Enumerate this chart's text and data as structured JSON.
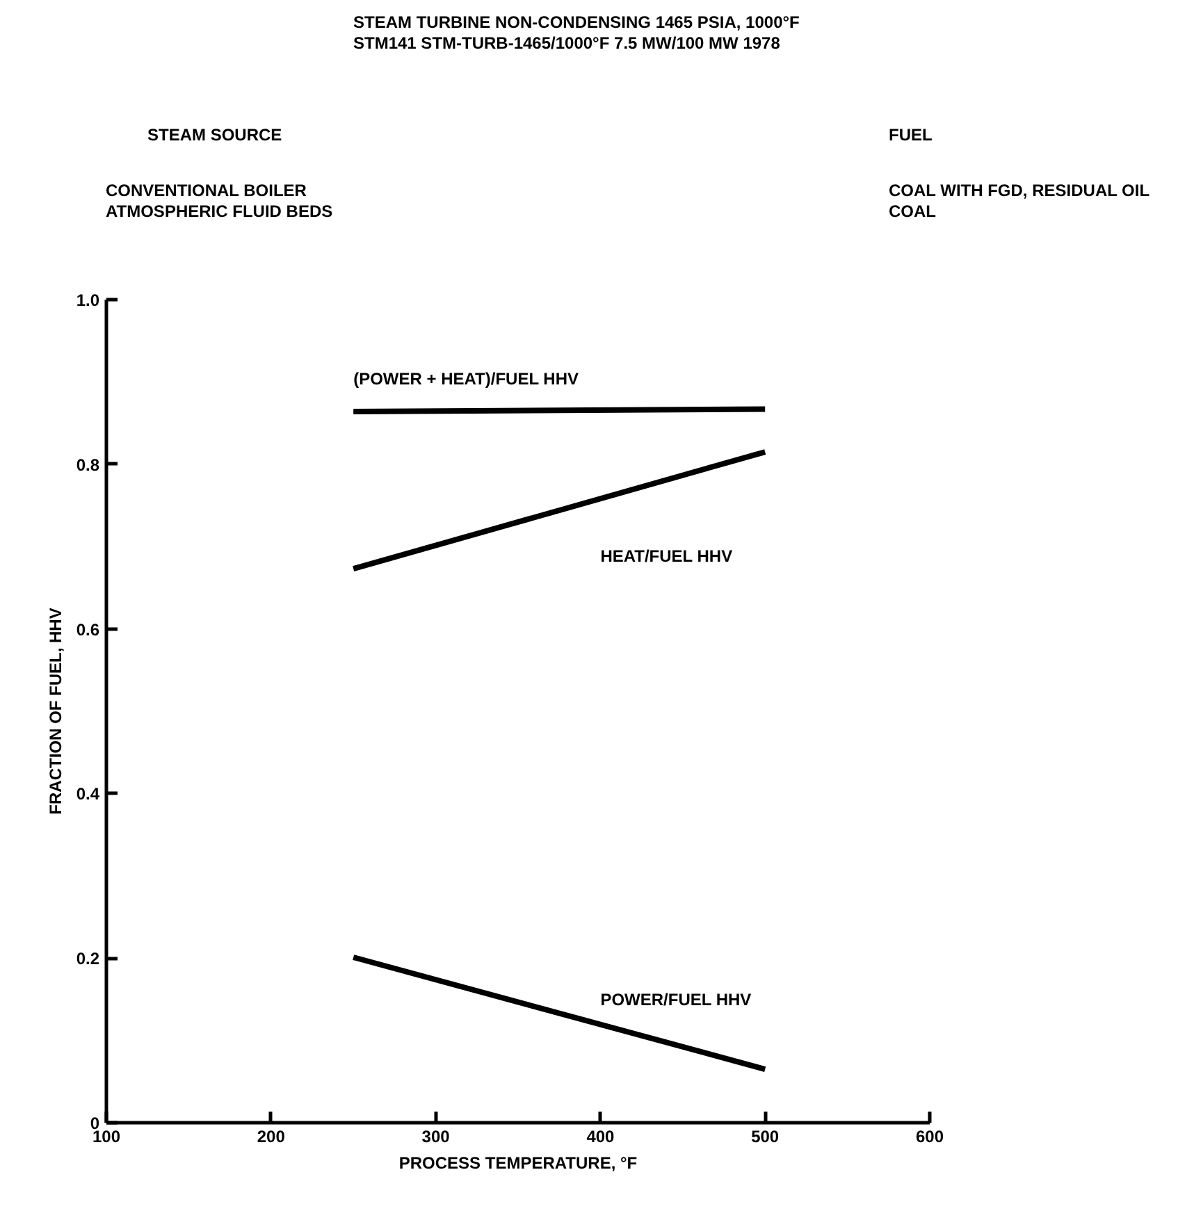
{
  "chart_data": {
    "type": "line",
    "title": "STEAM TURBINE NON-CONDENSING 1465 PSIA, 1000°F",
    "subtitle": "STM141 STM-TURB-1465/1000°F 7.5 MW/100 MW   1978",
    "xlabel": "PROCESS TEMPERATURE, °F",
    "ylabel": "FRACTION OF FUEL, HHV",
    "x": [
      250,
      500
    ],
    "series": [
      {
        "name": "(POWER + HEAT)/FUEL HHV",
        "color": "#000000",
        "values": [
          0.864,
          0.867
        ]
      },
      {
        "name": "HEAT/FUEL HHV",
        "color": "#000000",
        "values": [
          0.673,
          0.815
        ]
      },
      {
        "name": "POWER/FUEL HHV",
        "color": "#000000",
        "values": [
          0.201,
          0.065
        ]
      }
    ],
    "annotations": [
      "STEAM SOURCE",
      "FUEL",
      "CONVENTIONAL BOILER\nATMOSPHERIC FLUID BEDS",
      "COAL WITH FGD, RESIDUAL OIL\nCOAL"
    ],
    "xlim": [
      100,
      600
    ],
    "xticks": [
      100,
      200,
      300,
      400,
      500,
      600
    ],
    "ylim": [
      0,
      1.0
    ],
    "yticks": [
      0,
      0.2,
      0.4,
      0.6,
      0.8,
      {
        "value": 1.0,
        "label": "1.0"
      }
    ],
    "grid": false,
    "legend": false,
    "marker": "none",
    "line_style": "solid"
  }
}
